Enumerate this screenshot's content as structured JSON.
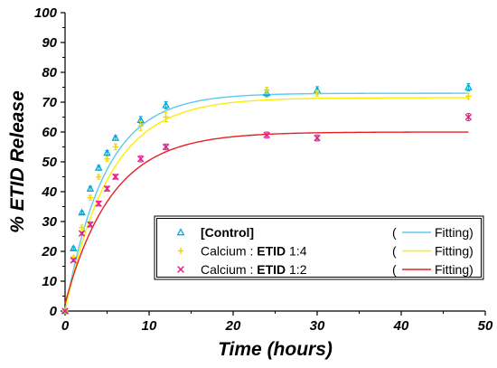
{
  "chart_data": {
    "type": "scatter",
    "title": "",
    "xlabel": "Time (hours)",
    "ylabel": "% ETID Release",
    "xlim": [
      0,
      50
    ],
    "ylim": [
      0,
      100
    ],
    "xticks": [
      "0",
      "10",
      "20",
      "30",
      "40",
      "50"
    ],
    "yticks": [
      "0",
      "10",
      "20",
      "30",
      "40",
      "50",
      "60",
      "70",
      "80",
      "90",
      "100"
    ],
    "grid": false,
    "legend_position": "bottom-right",
    "fitting_label": "Fitting)",
    "paren": "(",
    "series": [
      {
        "name": "[Control]",
        "name_parts": [
          {
            "t": "[Control]",
            "b": true
          }
        ],
        "marker": "triangle",
        "color": "#00a8d8",
        "fit_color": "#5ec8f0",
        "x": [
          0,
          1,
          2,
          3,
          4,
          5,
          6,
          9,
          12,
          24,
          30,
          48
        ],
        "y": [
          0,
          21,
          33,
          41,
          48,
          53,
          58,
          64,
          69,
          73,
          74,
          75
        ],
        "err": [
          0,
          0.5,
          0.5,
          0.8,
          0.8,
          0.8,
          0.8,
          1.2,
          1.2,
          1.2,
          1.2,
          1.2
        ],
        "fit": {
          "a": 73,
          "k": 0.21,
          "y0": 0
        }
      },
      {
        "name": "Calcium : ETID 1:4",
        "name_parts": [
          {
            "t": "Calcium : ",
            "b": false
          },
          {
            "t": "ETID",
            "b": true
          },
          {
            "t": " 1:4",
            "b": false
          }
        ],
        "marker": "plus",
        "color": "#f0d800",
        "fit_color": "#f8f000",
        "x": [
          0,
          1,
          2,
          3,
          4,
          5,
          6,
          9,
          12,
          24,
          30,
          48
        ],
        "y": [
          0,
          18,
          28,
          38,
          45,
          51,
          55,
          62,
          65,
          74,
          73,
          72
        ],
        "err": [
          0,
          0.5,
          0.8,
          0.8,
          0.8,
          0.8,
          1.0,
          1.5,
          1.5,
          1.0,
          1.0,
          1.0
        ],
        "fit": {
          "a": 71.5,
          "k": 0.19,
          "y0": 0
        }
      },
      {
        "name": "Calcium : ETID 1:2",
        "name_parts": [
          {
            "t": "Calcium : ",
            "b": false
          },
          {
            "t": "ETID",
            "b": true
          },
          {
            "t": " 1:2",
            "b": false
          }
        ],
        "marker": "cross",
        "color": "#e0208a",
        "fit_color": "#e82020",
        "x": [
          0,
          1,
          2,
          3,
          4,
          5,
          6,
          9,
          12,
          24,
          30,
          48
        ],
        "y": [
          0,
          17,
          26,
          29,
          36,
          41,
          45,
          51,
          55,
          59,
          58,
          65
        ],
        "err": [
          0,
          0.5,
          0.5,
          0.8,
          0.8,
          0.8,
          0.8,
          1.0,
          1.0,
          1.0,
          1.0,
          1.2
        ],
        "fit": {
          "a": 60,
          "k": 0.18,
          "y0": 2.5
        }
      }
    ]
  }
}
